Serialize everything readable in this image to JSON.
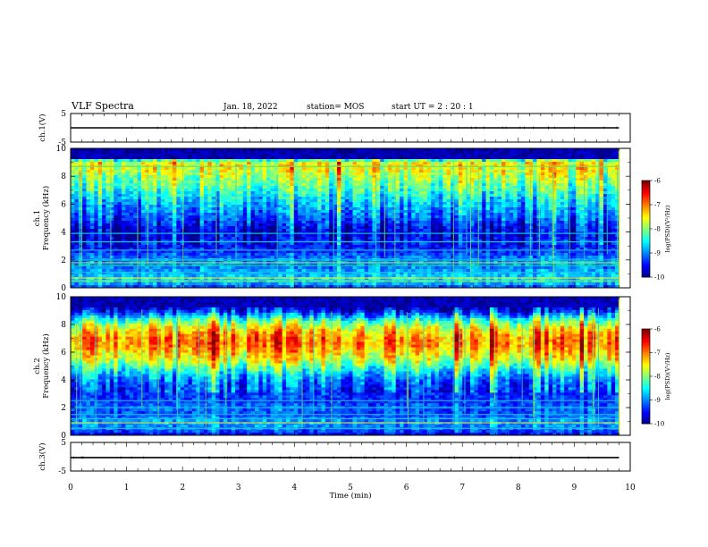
{
  "header": {
    "title": "VLF Spectra",
    "date": "Jan. 18, 2022",
    "station": "station= MOS",
    "start": "start  UT =   2 : 20 : 1"
  },
  "chart_data": [
    {
      "type": "line",
      "panel": "ch1-waveform",
      "ylabel": "ch.1(V)",
      "ylim": [
        -5,
        5
      ],
      "yticks": [
        5,
        -5
      ],
      "series": [
        {
          "x": [
            0,
            9.8
          ],
          "y": [
            0.0,
            0.0
          ]
        }
      ]
    },
    {
      "type": "heatmap",
      "panel": "ch1-spectrogram",
      "ylabel": "ch.1\nFrequency (kHz)",
      "ylim": [
        0,
        10
      ],
      "yticks": [
        0,
        2,
        4,
        6,
        8,
        10
      ],
      "xlim": [
        0,
        10
      ],
      "data_extent_min": 9.8,
      "colorbar": {
        "label": "log(PSD)(V²/Hz)",
        "range": [
          -10,
          -6
        ],
        "ticks": [
          -6,
          -7,
          -8,
          -9,
          -10
        ]
      },
      "profile": {
        "freq_khz": [
          0.0,
          0.5,
          1.0,
          1.5,
          2.0,
          2.5,
          3.0,
          3.5,
          4.0,
          4.5,
          5.0,
          5.5,
          6.0,
          6.5,
          7.0,
          7.5,
          8.0,
          8.5,
          9.0,
          9.5,
          10.0
        ],
        "log_psd": [
          -9.3,
          -8.6,
          -8.8,
          -9.0,
          -8.9,
          -9.3,
          -9.5,
          -9.6,
          -9.7,
          -9.5,
          -9.2,
          -9.0,
          -8.8,
          -8.6,
          -8.3,
          -8.1,
          -7.9,
          -7.6,
          -7.6,
          -10.0,
          -10.0
        ]
      },
      "lines_khz": [
        {
          "f": 0.5,
          "color": "#a8d62a"
        },
        {
          "f": 0.7,
          "color": "#e4e63a"
        },
        {
          "f": 1.1,
          "color": "#19c2ee"
        },
        {
          "f": 1.6,
          "color": "#11d7a6"
        },
        {
          "f": 1.8,
          "color": "#a7e233"
        },
        {
          "f": 2.0,
          "color": "#0fb9e6"
        },
        {
          "f": 2.7,
          "color": "#15a9e2"
        },
        {
          "f": 3.3,
          "color": "#18c4f0"
        },
        {
          "f": 3.9,
          "color": "#12b8e6"
        },
        {
          "f": 8.7,
          "color": "#6fe25c"
        }
      ]
    },
    {
      "type": "heatmap",
      "panel": "ch2-spectrogram",
      "ylabel": "ch.2\nFrequency (kHz)",
      "ylim": [
        0,
        10
      ],
      "yticks": [
        0,
        2,
        4,
        6,
        8,
        10
      ],
      "xlim": [
        0,
        10
      ],
      "data_extent_min": 9.8,
      "colorbar": {
        "label": "log(PSD)(V²/Hz)",
        "range": [
          -10,
          -6
        ],
        "ticks": [
          -6,
          -7,
          -8,
          -9,
          -10
        ]
      },
      "profile": {
        "freq_khz": [
          0.0,
          0.5,
          1.0,
          1.5,
          2.0,
          2.5,
          3.0,
          3.5,
          4.0,
          4.5,
          5.0,
          5.5,
          6.0,
          6.5,
          7.0,
          7.5,
          8.0,
          8.5,
          9.0,
          9.5,
          10.0
        ],
        "log_psd": [
          -9.6,
          -9.0,
          -8.9,
          -9.2,
          -9.1,
          -9.3,
          -9.3,
          -9.2,
          -9.0,
          -8.6,
          -8.1,
          -7.6,
          -7.3,
          -7.0,
          -7.0,
          -7.3,
          -7.8,
          -8.6,
          -9.5,
          -10.0,
          -10.0
        ]
      },
      "lines_khz": [
        {
          "f": 0.5,
          "color": "#19c2ee"
        },
        {
          "f": 0.9,
          "color": "#e4e63a"
        },
        {
          "f": 1.2,
          "color": "#19c2ee"
        },
        {
          "f": 1.5,
          "color": "#10b8e2"
        },
        {
          "f": 2.0,
          "color": "#12bce8"
        },
        {
          "f": 2.5,
          "color": "#15a9e2"
        }
      ]
    },
    {
      "type": "line",
      "panel": "ch3-waveform",
      "ylabel": "ch.3(V)",
      "ylim": [
        -5,
        5
      ],
      "yticks": [
        5,
        -5
      ],
      "series": [
        {
          "x": [
            0,
            9.8
          ],
          "y": [
            -0.3,
            -0.3
          ]
        }
      ]
    }
  ],
  "xaxis": {
    "label": "Time (min)",
    "ticks": [
      0,
      1,
      2,
      3,
      4,
      5,
      6,
      7,
      8,
      9,
      10
    ]
  }
}
